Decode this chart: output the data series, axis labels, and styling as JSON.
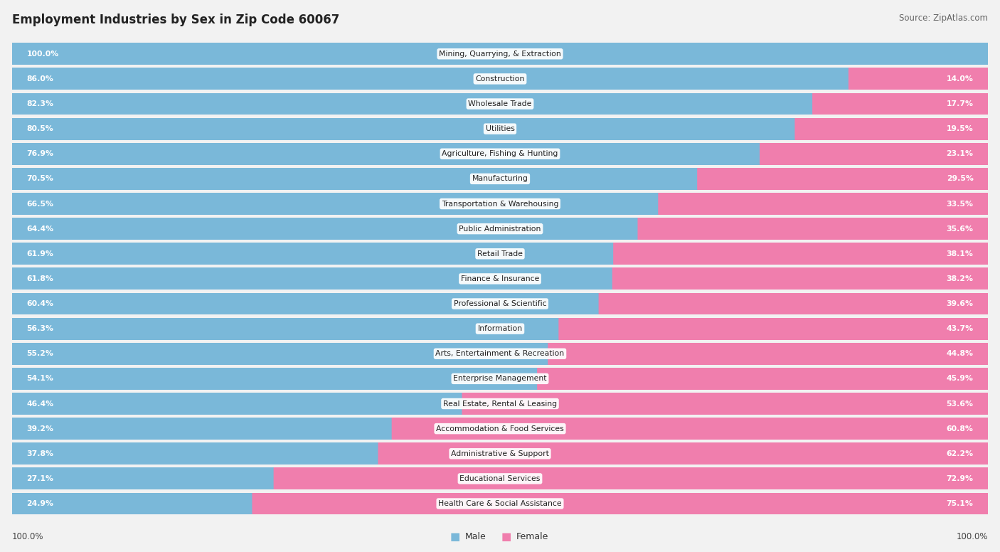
{
  "title": "Employment Industries by Sex in Zip Code 60067",
  "source": "Source: ZipAtlas.com",
  "industries": [
    {
      "name": "Mining, Quarrying, & Extraction",
      "male": 100.0,
      "female": 0.0
    },
    {
      "name": "Construction",
      "male": 86.0,
      "female": 14.0
    },
    {
      "name": "Wholesale Trade",
      "male": 82.3,
      "female": 17.7
    },
    {
      "name": "Utilities",
      "male": 80.5,
      "female": 19.5
    },
    {
      "name": "Agriculture, Fishing & Hunting",
      "male": 76.9,
      "female": 23.1
    },
    {
      "name": "Manufacturing",
      "male": 70.5,
      "female": 29.5
    },
    {
      "name": "Transportation & Warehousing",
      "male": 66.5,
      "female": 33.5
    },
    {
      "name": "Public Administration",
      "male": 64.4,
      "female": 35.6
    },
    {
      "name": "Retail Trade",
      "male": 61.9,
      "female": 38.1
    },
    {
      "name": "Finance & Insurance",
      "male": 61.8,
      "female": 38.2
    },
    {
      "name": "Professional & Scientific",
      "male": 60.4,
      "female": 39.6
    },
    {
      "name": "Information",
      "male": 56.3,
      "female": 43.7
    },
    {
      "name": "Arts, Entertainment & Recreation",
      "male": 55.2,
      "female": 44.8
    },
    {
      "name": "Enterprise Management",
      "male": 54.1,
      "female": 45.9
    },
    {
      "name": "Real Estate, Rental & Leasing",
      "male": 46.4,
      "female": 53.6
    },
    {
      "name": "Accommodation & Food Services",
      "male": 39.2,
      "female": 60.8
    },
    {
      "name": "Administrative & Support",
      "male": 37.8,
      "female": 62.2
    },
    {
      "name": "Educational Services",
      "male": 27.1,
      "female": 72.9
    },
    {
      "name": "Health Care & Social Assistance",
      "male": 24.9,
      "female": 75.1
    }
  ],
  "male_color": "#7ab8d9",
  "female_color": "#f07ead",
  "bg_color": "#f2f2f2",
  "row_bg_color": "#ffffff",
  "title_color": "#222222",
  "source_color": "#666666",
  "label_color_dark": "#333333",
  "label_color_white": "#ffffff",
  "pct_label_outside_color": "#555555"
}
